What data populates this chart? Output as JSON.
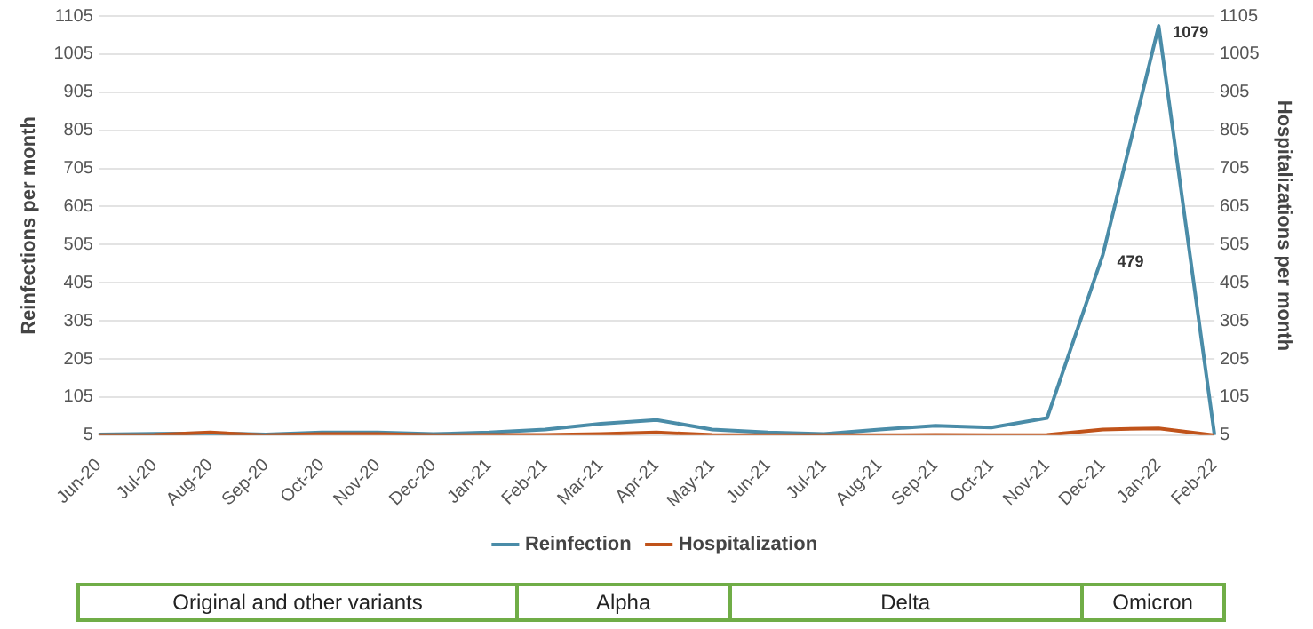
{
  "chart_data": {
    "type": "line",
    "xlabel": null,
    "ylabel": "Reinfections per month",
    "y2label": "Hospitalizations per month",
    "categories": [
      "Jun-20",
      "Jul-20",
      "Aug-20",
      "Sep-20",
      "Oct-20",
      "Nov-20",
      "Dec-20",
      "Jan-21",
      "Feb-21",
      "Mar-21",
      "Apr-21",
      "May-21",
      "Jun-21",
      "Jul-21",
      "Aug-21",
      "Sep-21",
      "Oct-21",
      "Nov-21",
      "Dec-21",
      "Jan-22",
      "Feb-22"
    ],
    "series": [
      {
        "name": "Reinfection",
        "color": "#4a8ca8",
        "values": [
          7,
          9,
          10,
          7,
          12,
          12,
          8,
          12,
          20,
          35,
          45,
          20,
          12,
          8,
          20,
          30,
          25,
          50,
          479,
          1079,
          5
        ],
        "value_labels": [
          null,
          null,
          null,
          null,
          null,
          null,
          null,
          null,
          null,
          null,
          null,
          null,
          null,
          null,
          null,
          null,
          null,
          null,
          "479",
          "1079",
          null
        ]
      },
      {
        "name": "Hospitalization",
        "color": "#c0531a",
        "axis": "y2",
        "values": [
          5,
          6,
          12,
          5,
          8,
          8,
          5,
          6,
          6,
          8,
          12,
          6,
          5,
          5,
          5,
          6,
          5,
          6,
          20,
          23,
          5
        ]
      }
    ],
    "ylim": [
      5,
      1105
    ],
    "yticks": [
      5,
      105,
      205,
      305,
      405,
      505,
      605,
      705,
      805,
      905,
      1005,
      1105
    ],
    "y2lim": [
      5,
      1105
    ],
    "y2ticks": [
      5,
      105,
      205,
      305,
      405,
      505,
      605,
      705,
      805,
      905,
      1005,
      1105
    ],
    "grid": "y",
    "legend": "bottom",
    "marker": "none",
    "line_style": "solid",
    "annotations": [
      "Original and other variants",
      "Alpha",
      "Delta",
      "Omicron"
    ]
  }
}
